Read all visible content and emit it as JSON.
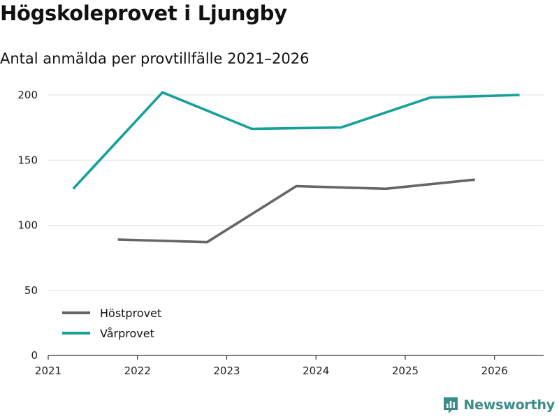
{
  "header": {
    "title": "Högskoleprovet i Ljungby",
    "subtitle": "Antal anmälda per provtillfälle 2021–2026"
  },
  "brand": {
    "name": "Newsworthy",
    "color": "#3a8c88"
  },
  "chart_data": {
    "type": "line",
    "title": "Högskoleprovet i Ljungby",
    "subtitle": "Antal anmälda per provtillfälle 2021–2026",
    "xlabel": "",
    "ylabel": "",
    "x_ticks": [
      "2021",
      "2022",
      "2023",
      "2024",
      "2025",
      "2026"
    ],
    "xlim": [
      2021,
      2026.55
    ],
    "ylim": [
      0,
      200
    ],
    "y_ticks": [
      0,
      50,
      100,
      150,
      200
    ],
    "grid": true,
    "legend_position": "bottom-left",
    "series": [
      {
        "name": "Höstprovet",
        "color": "#666666",
        "x": [
          2021.78,
          2022.78,
          2023.78,
          2024.78,
          2025.78
        ],
        "values": [
          89,
          87,
          130,
          128,
          135
        ]
      },
      {
        "name": "Vårprovet",
        "color": "#16a09a",
        "x": [
          2021.28,
          2022.28,
          2023.28,
          2024.28,
          2025.28,
          2026.28
        ],
        "values": [
          128,
          202,
          174,
          175,
          198,
          200
        ]
      }
    ]
  }
}
